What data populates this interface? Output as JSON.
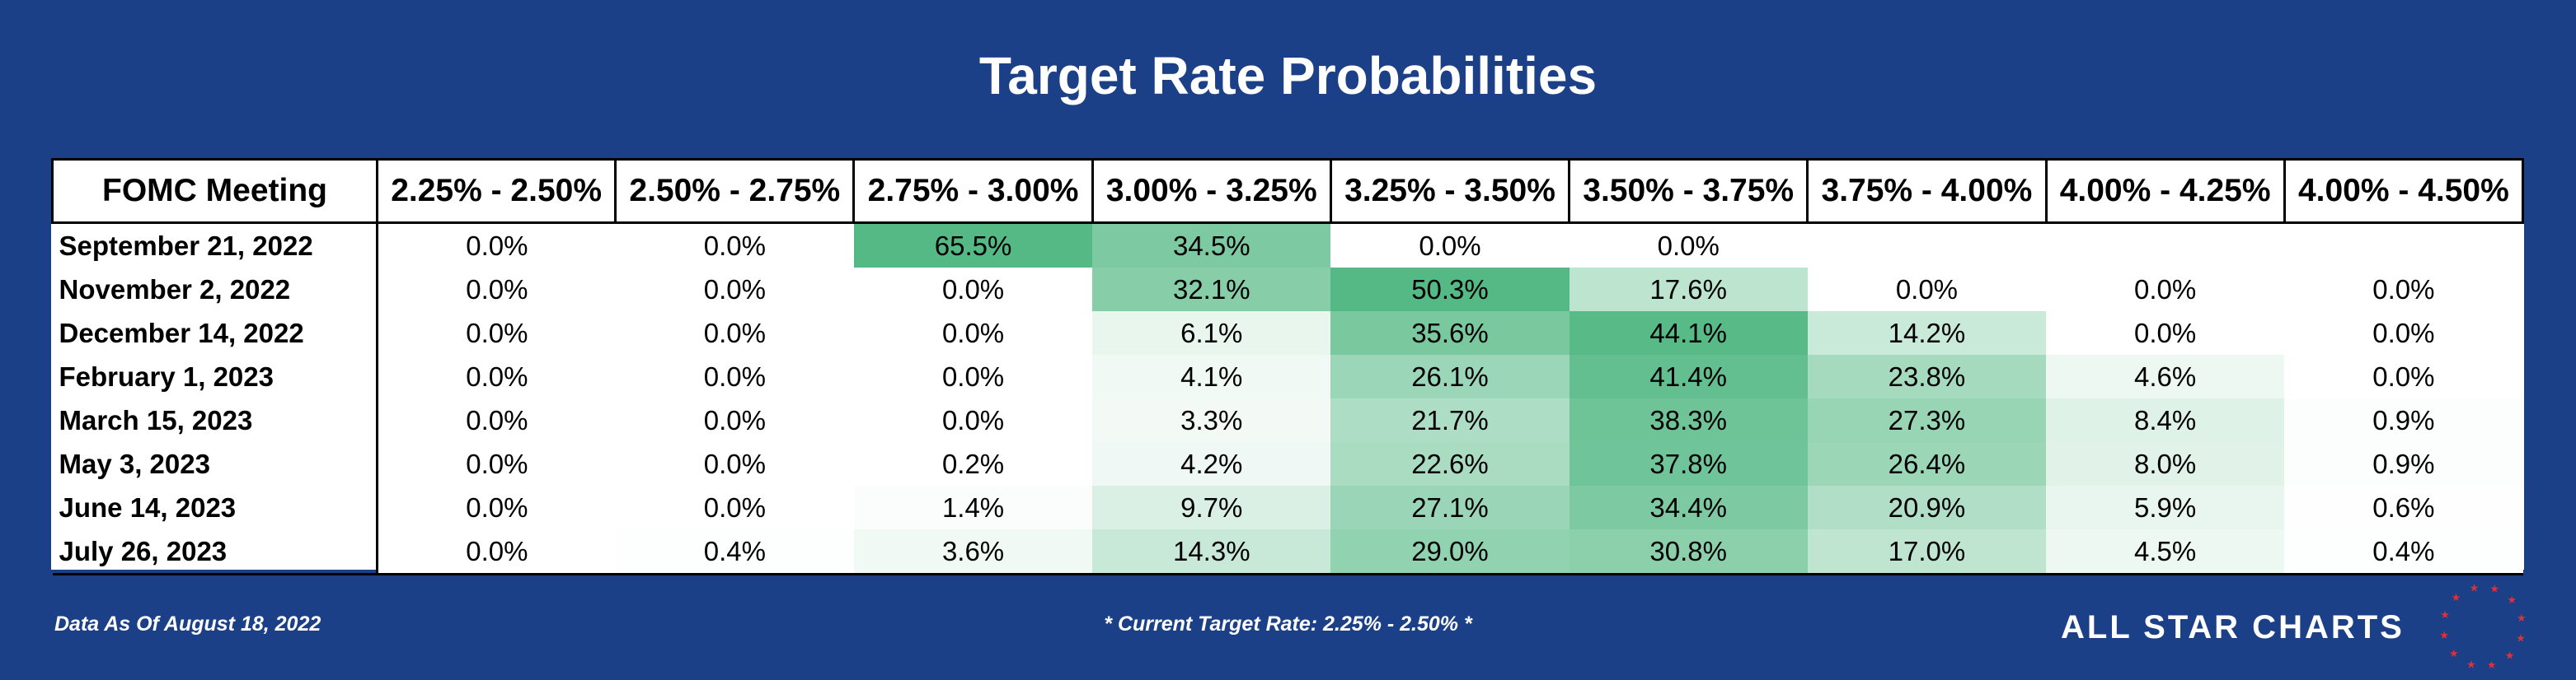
{
  "title": "Target Rate Probabilities",
  "footer": {
    "as_of": "Data As Of August 18, 2022",
    "current_rate": "* Current Target Rate: 2.25% - 2.50% *",
    "brand": "ALL STAR CHARTS"
  },
  "colors": {
    "background": "#1b4088",
    "cell_max": "#55b985",
    "cell_min": "#ffffff",
    "star": "#e0303a"
  },
  "chart_data": {
    "type": "heatmap",
    "title": "Target Rate Probabilities",
    "header": "FOMC Meeting",
    "columns": [
      "2.25% - 2.50%",
      "2.50% - 2.75%",
      "2.75% - 3.00%",
      "3.00% - 3.25%",
      "3.25% - 3.50%",
      "3.50% - 3.75%",
      "3.75% - 4.00%",
      "4.00% - 4.25%",
      "4.00% - 4.50%"
    ],
    "rows": [
      {
        "meeting": "September 21, 2022",
        "values": [
          "0.0%",
          "0.0%",
          "65.5%",
          "34.5%",
          "0.0%",
          "0.0%",
          "",
          "",
          ""
        ]
      },
      {
        "meeting": "November 2, 2022",
        "values": [
          "0.0%",
          "0.0%",
          "0.0%",
          "32.1%",
          "50.3%",
          "17.6%",
          "0.0%",
          "0.0%",
          "0.0%"
        ]
      },
      {
        "meeting": "December 14, 2022",
        "values": [
          "0.0%",
          "0.0%",
          "0.0%",
          "6.1%",
          "35.6%",
          "44.1%",
          "14.2%",
          "0.0%",
          "0.0%"
        ]
      },
      {
        "meeting": "February 1, 2023",
        "values": [
          "0.0%",
          "0.0%",
          "0.0%",
          "4.1%",
          "26.1%",
          "41.4%",
          "23.8%",
          "4.6%",
          "0.0%"
        ]
      },
      {
        "meeting": "March 15, 2023",
        "values": [
          "0.0%",
          "0.0%",
          "0.0%",
          "3.3%",
          "21.7%",
          "38.3%",
          "27.3%",
          "8.4%",
          "0.9%"
        ]
      },
      {
        "meeting": "May 3, 2023",
        "values": [
          "0.0%",
          "0.0%",
          "0.2%",
          "4.2%",
          "22.6%",
          "37.8%",
          "26.4%",
          "8.0%",
          "0.9%"
        ]
      },
      {
        "meeting": "June 14, 2023",
        "values": [
          "0.0%",
          "0.0%",
          "1.4%",
          "9.7%",
          "27.1%",
          "34.4%",
          "20.9%",
          "5.9%",
          "0.6%"
        ]
      },
      {
        "meeting": "July 26, 2023",
        "values": [
          "0.0%",
          "0.4%",
          "3.6%",
          "14.3%",
          "29.0%",
          "30.8%",
          "17.0%",
          "4.5%",
          "0.4%"
        ]
      }
    ]
  }
}
